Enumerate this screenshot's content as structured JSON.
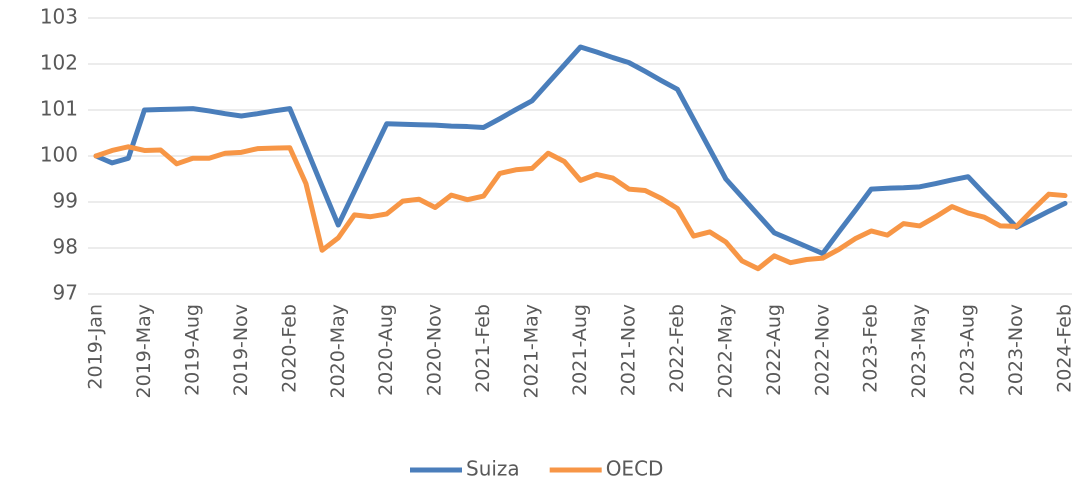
{
  "chart_data": {
    "type": "line",
    "categories": [
      "2019-Jan",
      null,
      null,
      "2019-May",
      null,
      null,
      "2019-Aug",
      null,
      null,
      "2019-Nov",
      null,
      null,
      "2020-Feb",
      null,
      null,
      "2020-May",
      null,
      null,
      "2020-Aug",
      null,
      null,
      "2020-Nov",
      null,
      null,
      "2021-Feb",
      null,
      null,
      "2021-May",
      null,
      null,
      "2021-Aug",
      null,
      null,
      "2021-Nov",
      null,
      null,
      "2022-Feb",
      null,
      null,
      "2022-May",
      null,
      null,
      "2022-Aug",
      null,
      null,
      "2022-Nov",
      null,
      null,
      "2023-Feb",
      null,
      null,
      "2023-May",
      null,
      null,
      "2023-Aug",
      null,
      null,
      "2023-Nov",
      null,
      null,
      "2024-Feb"
    ],
    "series": [
      {
        "name": "Suiza",
        "color": "#4a7ebb",
        "values": [
          100.0,
          99.85,
          99.95,
          101.0,
          101.01,
          101.02,
          101.03,
          100.98,
          100.92,
          100.87,
          100.92,
          100.98,
          101.03,
          100.19,
          99.34,
          98.5,
          99.23,
          99.97,
          100.7,
          100.69,
          100.68,
          100.67,
          100.65,
          100.64,
          100.62,
          100.81,
          101.01,
          101.2,
          101.59,
          101.98,
          102.37,
          102.26,
          102.14,
          102.03,
          101.84,
          101.64,
          101.45,
          100.8,
          100.15,
          99.5,
          99.11,
          98.72,
          98.33,
          98.18,
          98.03,
          97.88,
          98.35,
          98.81,
          99.28,
          99.3,
          99.31,
          99.33,
          99.4,
          99.48,
          99.55,
          99.18,
          98.82,
          98.45,
          98.62,
          98.8,
          98.97
        ]
      },
      {
        "name": "OECD",
        "color": "#f79646",
        "values": [
          100.0,
          100.12,
          100.2,
          100.12,
          100.13,
          99.83,
          99.95,
          99.95,
          100.06,
          100.08,
          100.16,
          100.17,
          100.18,
          99.4,
          97.95,
          98.22,
          98.72,
          98.68,
          98.74,
          99.02,
          99.06,
          98.88,
          99.15,
          99.05,
          99.13,
          99.62,
          99.7,
          99.73,
          100.06,
          99.88,
          99.47,
          99.6,
          99.52,
          99.28,
          99.25,
          99.08,
          98.86,
          98.26,
          98.35,
          98.13,
          97.72,
          97.55,
          97.83,
          97.68,
          97.75,
          97.78,
          97.97,
          98.2,
          98.37,
          98.28,
          98.53,
          98.48,
          98.68,
          98.9,
          98.76,
          98.67,
          98.48,
          98.47,
          98.83,
          99.17,
          99.14
        ]
      }
    ],
    "ylim": [
      97,
      103
    ],
    "yticks": [
      97,
      98,
      99,
      100,
      101,
      102,
      103
    ],
    "grid": true,
    "legend": "bottom"
  }
}
